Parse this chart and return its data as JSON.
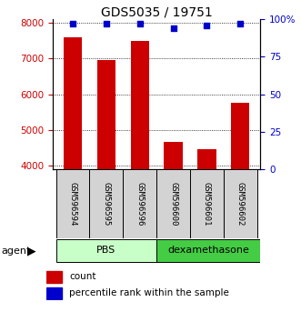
{
  "title": "GDS5035 / 19751",
  "samples": [
    "GSM596594",
    "GSM596595",
    "GSM596596",
    "GSM596600",
    "GSM596601",
    "GSM596602"
  ],
  "counts": [
    7600,
    6950,
    7500,
    4650,
    4450,
    5750
  ],
  "percentile_ranks": [
    97,
    97,
    97,
    94,
    96,
    97
  ],
  "bar_color": "#cc0000",
  "dot_color": "#0000cc",
  "ylim_left": [
    3900,
    8100
  ],
  "ylim_right": [
    0,
    100
  ],
  "yticks_left": [
    4000,
    5000,
    6000,
    7000,
    8000
  ],
  "yticks_right": [
    0,
    25,
    50,
    75,
    100
  ],
  "yticklabels_right": [
    "0",
    "25",
    "50",
    "75",
    "100%"
  ],
  "sample_box_color": "#d3d3d3",
  "pbs_color": "#c8ffc8",
  "dexa_color": "#44cc44",
  "legend_count_color": "#cc0000",
  "legend_pct_color": "#0000cc"
}
